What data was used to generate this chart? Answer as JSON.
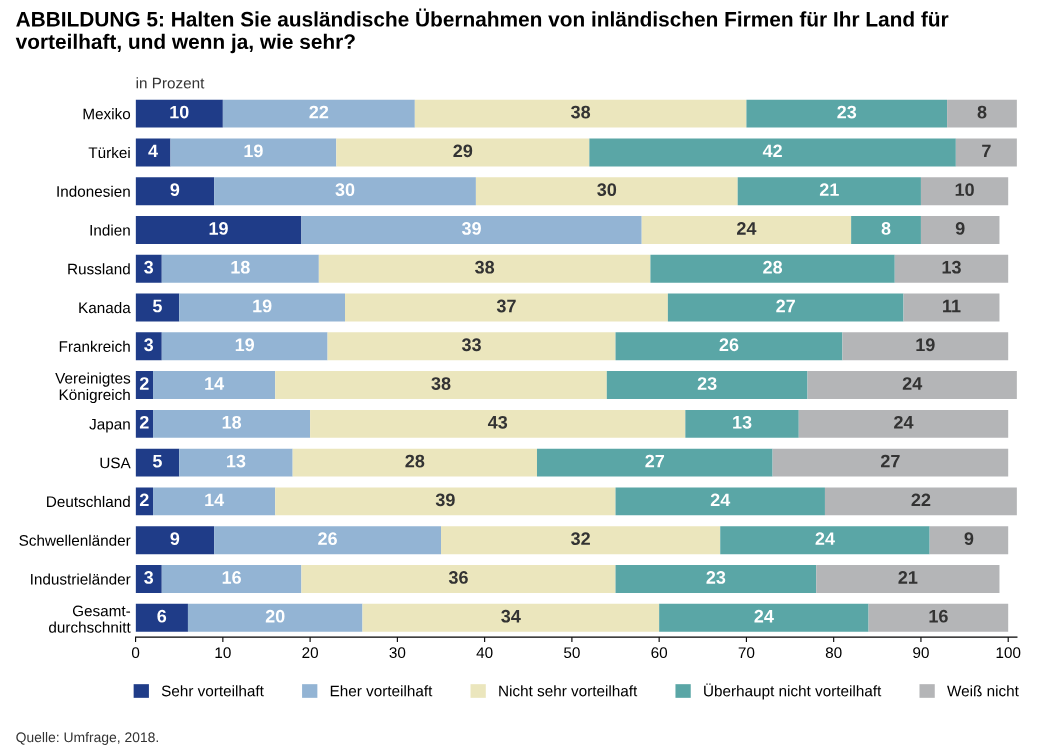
{
  "chart_data": {
    "type": "bar",
    "orientation": "horizontal",
    "stacked": true,
    "title": "ABBILDUNG 5: Halten Sie ausländische Übernahmen von inländischen Firmen für Ihr Land für vorteilhaft, und wenn ja, wie sehr?",
    "categories": [
      "Mexiko",
      "Türkei",
      "Indonesien",
      "Indien",
      "Russland",
      "Kanada",
      "Frankreich",
      "Vereinigtes\nKönigreich",
      "Japan",
      "USA",
      "Deutschland",
      "Schwellenländer",
      "Industrieländer",
      "Gesamt-\ndurchschnitt"
    ],
    "series": [
      {
        "name": "Sehr vorteilhaft",
        "color": "#1f3c88",
        "values": [
          10,
          4,
          9,
          19,
          3,
          5,
          3,
          2,
          2,
          5,
          2,
          9,
          3,
          6
        ]
      },
      {
        "name": "Eher vorteilhaft",
        "color": "#93b4d4",
        "values": [
          22,
          19,
          30,
          39,
          18,
          19,
          19,
          14,
          18,
          13,
          14,
          26,
          16,
          20
        ]
      },
      {
        "name": "Nicht sehr vorteilhaft",
        "color": "#ebe6bd",
        "values": [
          38,
          29,
          30,
          24,
          38,
          37,
          33,
          38,
          43,
          28,
          39,
          32,
          36,
          34
        ]
      },
      {
        "name": "Überhaupt nicht vorteilhaft",
        "color": "#5aa6a6",
        "values": [
          23,
          42,
          21,
          8,
          28,
          27,
          26,
          23,
          13,
          27,
          24,
          24,
          23,
          24
        ]
      },
      {
        "name": "Weiß nicht",
        "color": "#b4b5b7",
        "values": [
          8,
          7,
          10,
          9,
          13,
          11,
          19,
          24,
          24,
          27,
          22,
          9,
          21,
          16
        ]
      }
    ],
    "xlim": [
      0,
      101
    ],
    "xticks": [
      0,
      10,
      20,
      30,
      40,
      50,
      60,
      70,
      80,
      90,
      100
    ],
    "data_labels": true,
    "legend": "bottom",
    "annotations": [
      "in Prozent",
      "Quelle: Umfrage, 2018."
    ]
  }
}
